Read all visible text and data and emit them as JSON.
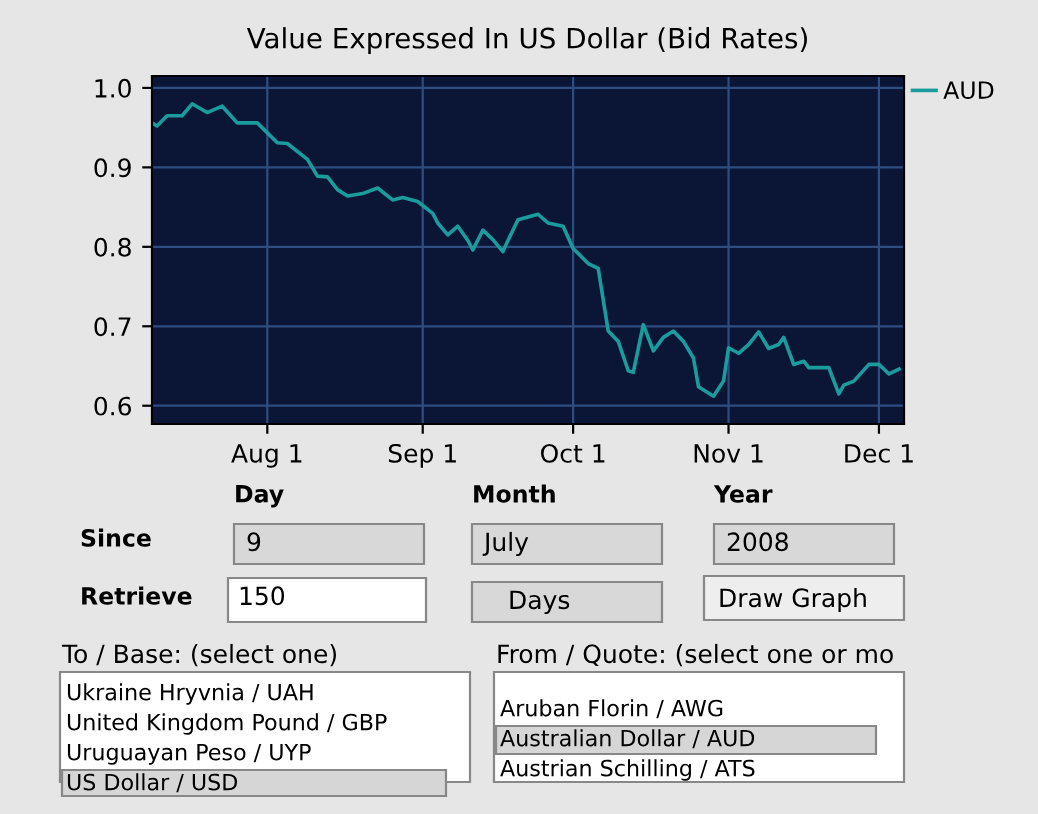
{
  "chart_data": {
    "type": "line",
    "title": "Value Expressed In US Dollar (Bid Rates)",
    "x": [
      "2008-07-09",
      "2008-07-10",
      "2008-07-12",
      "2008-07-15",
      "2008-07-17",
      "2008-07-20",
      "2008-07-23",
      "2008-07-26",
      "2008-07-30",
      "2008-08-03",
      "2008-08-05",
      "2008-08-09",
      "2008-08-11",
      "2008-08-13",
      "2008-08-15",
      "2008-08-17",
      "2008-08-20",
      "2008-08-23",
      "2008-08-26",
      "2008-08-28",
      "2008-08-31",
      "2008-09-03",
      "2008-09-04",
      "2008-09-06",
      "2008-09-08",
      "2008-09-10",
      "2008-09-11",
      "2008-09-13",
      "2008-09-15",
      "2008-09-17",
      "2008-09-18",
      "2008-09-20",
      "2008-09-24",
      "2008-09-26",
      "2008-09-29",
      "2008-10-01",
      "2008-10-04",
      "2008-10-06",
      "2008-10-08",
      "2008-10-10",
      "2008-10-12",
      "2008-10-13",
      "2008-10-15",
      "2008-10-17",
      "2008-10-19",
      "2008-10-21",
      "2008-10-23",
      "2008-10-25",
      "2008-10-26",
      "2008-10-29",
      "2008-10-31",
      "2008-11-01",
      "2008-11-03",
      "2008-11-05",
      "2008-11-07",
      "2008-11-09",
      "2008-11-11",
      "2008-11-12",
      "2008-11-14",
      "2008-11-16",
      "2008-11-17",
      "2008-11-21",
      "2008-11-23",
      "2008-11-24",
      "2008-11-26",
      "2008-11-29",
      "2008-12-01",
      "2008-12-03",
      "2008-12-05"
    ],
    "series": [
      {
        "name": "AUD",
        "color": "#1a9c9c",
        "values": [
          0.956,
          0.952,
          0.965,
          0.965,
          0.98,
          0.969,
          0.977,
          0.956,
          0.956,
          0.931,
          0.93,
          0.91,
          0.889,
          0.888,
          0.872,
          0.864,
          0.867,
          0.874,
          0.859,
          0.862,
          0.857,
          0.842,
          0.83,
          0.815,
          0.826,
          0.808,
          0.796,
          0.821,
          0.809,
          0.794,
          0.808,
          0.834,
          0.841,
          0.83,
          0.826,
          0.798,
          0.779,
          0.773,
          0.694,
          0.681,
          0.644,
          0.642,
          0.702,
          0.669,
          0.686,
          0.694,
          0.681,
          0.66,
          0.624,
          0.612,
          0.631,
          0.673,
          0.666,
          0.677,
          0.693,
          0.672,
          0.677,
          0.686,
          0.652,
          0.656,
          0.648,
          0.648,
          0.615,
          0.626,
          0.631,
          0.652,
          0.652,
          0.64,
          0.646
        ]
      }
    ],
    "xlim": [
      "2008-07-09",
      "2008-12-06"
    ],
    "xticks": [
      {
        "value": "2008-08-01",
        "label": "Aug 1"
      },
      {
        "value": "2008-09-01",
        "label": "Sep 1"
      },
      {
        "value": "2008-10-01",
        "label": "Oct 1"
      },
      {
        "value": "2008-11-01",
        "label": "Nov 1"
      },
      {
        "value": "2008-12-01",
        "label": "Dec 1"
      }
    ],
    "ylim": [
      0.577,
      1.015
    ],
    "yticks": [
      0.6,
      0.7,
      0.8,
      0.9,
      {
        "value": 1.0,
        "label": "1.0"
      }
    ],
    "grid": true,
    "legend": "top right",
    "marker": "none",
    "line_style": "solid",
    "annotations": [
      "Day",
      "Month",
      "Year",
      "Since",
      "9",
      "July",
      "2008",
      "Retrieve",
      "150",
      "Days",
      "Draw Graph",
      "To / Base: (select one)",
      "Ukraine Hryvnia / UAH",
      "United Kingdom Pound / GBP",
      "Uruguayan Peso / UYP",
      "US Dollar / USD",
      "From / Quote: (select one or mo",
      "Aruban Florin / AWG",
      "Australian Dollar / AUD",
      "Austrian Schilling / ATS"
    ]
  }
}
